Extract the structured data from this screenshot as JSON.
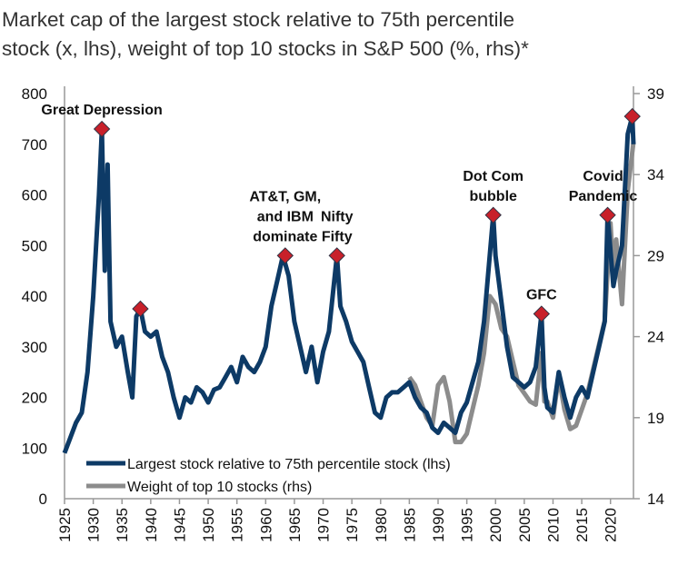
{
  "chart_data": {
    "type": "line",
    "title": "Market cap of the largest stock relative to 75th percentile stock (x, lhs), weight of top 10 stocks in S&P 500 (%, rhs)*",
    "title_lines": [
      "Market cap of the largest stock relative to 75th percentile",
      "stock (x, lhs), weight of top 10 stocks in S&P 500 (%, rhs)*"
    ],
    "xlim": [
      1925,
      2024
    ],
    "x_ticks": [
      "1925",
      "1930",
      "1935",
      "1940",
      "1945",
      "1950",
      "1955",
      "1960",
      "1965",
      "1970",
      "1975",
      "1980",
      "1985",
      "1990",
      "1995",
      "2000",
      "2005",
      "2010",
      "2015",
      "2020"
    ],
    "y_left": {
      "lim": [
        0,
        800
      ],
      "ticks": [
        "0",
        "100",
        "200",
        "300",
        "400",
        "500",
        "600",
        "700",
        "800"
      ]
    },
    "y_right": {
      "lim": [
        14,
        39
      ],
      "ticks": [
        "14",
        "19",
        "24",
        "29",
        "34",
        "39"
      ]
    },
    "grid": false,
    "legend_position": "bottom-left",
    "series": [
      {
        "name": "Largest stock relative to 75th percentile stock (lhs)",
        "axis": "left",
        "color": "#0d3a66",
        "points": [
          [
            1925,
            90
          ],
          [
            1926,
            120
          ],
          [
            1927,
            150
          ],
          [
            1928,
            170
          ],
          [
            1929,
            250
          ],
          [
            1930,
            400
          ],
          [
            1931,
            600
          ],
          [
            1931.5,
            730
          ],
          [
            1932,
            450
          ],
          [
            1932.5,
            660
          ],
          [
            1933,
            350
          ],
          [
            1934,
            300
          ],
          [
            1935,
            320
          ],
          [
            1936,
            250
          ],
          [
            1936.8,
            200
          ],
          [
            1937.5,
            360
          ],
          [
            1938.2,
            375
          ],
          [
            1939,
            330
          ],
          [
            1940,
            320
          ],
          [
            1941,
            330
          ],
          [
            1942,
            280
          ],
          [
            1943,
            250
          ],
          [
            1944,
            200
          ],
          [
            1945,
            160
          ],
          [
            1946,
            200
          ],
          [
            1947,
            190
          ],
          [
            1948,
            220
          ],
          [
            1949,
            210
          ],
          [
            1950,
            190
          ],
          [
            1951,
            215
          ],
          [
            1952,
            220
          ],
          [
            1953,
            240
          ],
          [
            1954,
            260
          ],
          [
            1955,
            230
          ],
          [
            1956,
            280
          ],
          [
            1957,
            260
          ],
          [
            1958,
            250
          ],
          [
            1959,
            270
          ],
          [
            1960,
            300
          ],
          [
            1961,
            380
          ],
          [
            1962,
            430
          ],
          [
            1963,
            480
          ],
          [
            1964,
            440
          ],
          [
            1965,
            350
          ],
          [
            1966,
            300
          ],
          [
            1967,
            250
          ],
          [
            1968,
            300
          ],
          [
            1969,
            230
          ],
          [
            1970,
            290
          ],
          [
            1971,
            330
          ],
          [
            1972.4,
            480
          ],
          [
            1973,
            380
          ],
          [
            1974,
            350
          ],
          [
            1975,
            310
          ],
          [
            1976,
            290
          ],
          [
            1977,
            270
          ],
          [
            1978,
            220
          ],
          [
            1979,
            170
          ],
          [
            1980,
            160
          ],
          [
            1981,
            200
          ],
          [
            1982,
            210
          ],
          [
            1983,
            210
          ],
          [
            1984,
            220
          ],
          [
            1985,
            230
          ],
          [
            1986,
            200
          ],
          [
            1987,
            180
          ],
          [
            1988,
            170
          ],
          [
            1989,
            140
          ],
          [
            1990,
            130
          ],
          [
            1991,
            150
          ],
          [
            1992,
            140
          ],
          [
            1993,
            130
          ],
          [
            1994,
            170
          ],
          [
            1995,
            190
          ],
          [
            1996,
            230
          ],
          [
            1997,
            270
          ],
          [
            1998,
            350
          ],
          [
            1999.6,
            560
          ],
          [
            2000,
            480
          ],
          [
            2001,
            390
          ],
          [
            2002,
            300
          ],
          [
            2003,
            240
          ],
          [
            2004,
            230
          ],
          [
            2005,
            220
          ],
          [
            2006,
            230
          ],
          [
            2007,
            260
          ],
          [
            2008,
            365
          ],
          [
            2008.5,
            220
          ],
          [
            2009,
            180
          ],
          [
            2010,
            170
          ],
          [
            2011,
            250
          ],
          [
            2012,
            200
          ],
          [
            2013,
            160
          ],
          [
            2014,
            200
          ],
          [
            2015,
            220
          ],
          [
            2016,
            200
          ],
          [
            2017,
            250
          ],
          [
            2018,
            300
          ],
          [
            2019,
            350
          ],
          [
            2019.5,
            560
          ],
          [
            2020.5,
            420
          ],
          [
            2021,
            450
          ],
          [
            2022,
            500
          ],
          [
            2023,
            720
          ],
          [
            2023.8,
            755
          ],
          [
            2024,
            700
          ]
        ]
      },
      {
        "name": "Weight of top 10 stocks (rhs)",
        "axis": "right",
        "color": "#8c8c8c",
        "points": [
          [
            1985,
            21.5
          ],
          [
            1986,
            21
          ],
          [
            1987,
            20
          ],
          [
            1988,
            19
          ],
          [
            1989,
            18.5
          ],
          [
            1990,
            21
          ],
          [
            1991,
            21.5
          ],
          [
            1992,
            20
          ],
          [
            1993,
            17.5
          ],
          [
            1994,
            17.5
          ],
          [
            1995,
            18
          ],
          [
            1996,
            19.5
          ],
          [
            1997,
            21
          ],
          [
            1998,
            23
          ],
          [
            1999,
            26.5
          ],
          [
            2000,
            26
          ],
          [
            2001,
            24.5
          ],
          [
            2002,
            24
          ],
          [
            2003,
            22.5
          ],
          [
            2004,
            21
          ],
          [
            2005,
            20.5
          ],
          [
            2006,
            20
          ],
          [
            2007,
            19.8
          ],
          [
            2008,
            23
          ],
          [
            2008.5,
            20
          ],
          [
            2009,
            20
          ],
          [
            2010,
            19
          ],
          [
            2011,
            21.5
          ],
          [
            2012,
            19.5
          ],
          [
            2013,
            18.3
          ],
          [
            2014,
            18.5
          ],
          [
            2015,
            19.5
          ],
          [
            2016,
            20.5
          ],
          [
            2017,
            22
          ],
          [
            2018,
            23.5
          ],
          [
            2019,
            25
          ],
          [
            2020,
            31
          ],
          [
            2020.5,
            28
          ],
          [
            2021,
            30
          ],
          [
            2022,
            26
          ],
          [
            2023,
            33
          ],
          [
            2024,
            36
          ]
        ]
      }
    ],
    "annotations": [
      {
        "text": "Great Depression",
        "x": 1931.5,
        "y": 730
      },
      {
        "text": "",
        "x": 1938.2,
        "y": 375
      },
      {
        "text": "AT&T, GM, and IBM dominate",
        "lines": [
          "AT&T, GM,",
          "and IBM",
          "dominate"
        ],
        "x": 1963.4,
        "y": 480
      },
      {
        "text": "Nifty Fifty",
        "lines": [
          "Nifty",
          "Fifty"
        ],
        "x": 1972.4,
        "y": 480
      },
      {
        "text": "Dot Com bubble",
        "lines": [
          "Dot Com",
          "bubble"
        ],
        "x": 1999.6,
        "y": 560
      },
      {
        "text": "GFC",
        "lines": [
          "GFC"
        ],
        "x": 2008,
        "y": 365
      },
      {
        "text": "Covid Pandemic",
        "lines": [
          "Covid",
          "Pandemic"
        ],
        "x": 2019.5,
        "y": 560
      },
      {
        "text": "",
        "x": 2023.8,
        "y": 755
      }
    ],
    "marker_color": "#c8202a"
  }
}
